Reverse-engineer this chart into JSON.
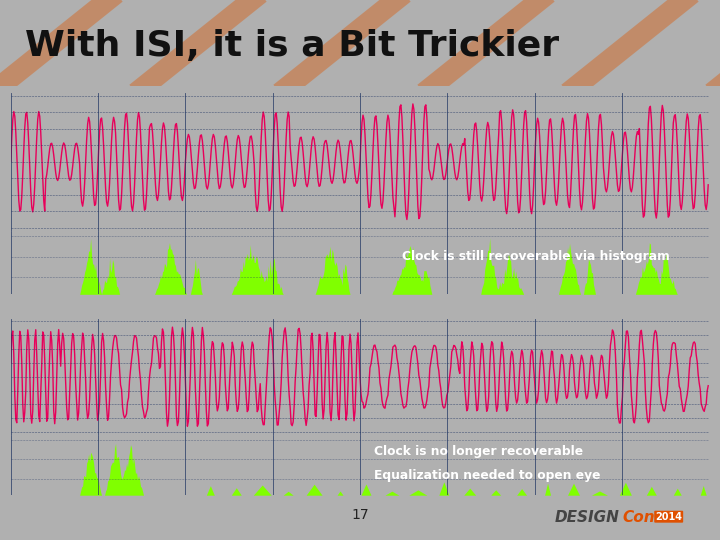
{
  "title": "With ISI, it is a Bit Trickier",
  "title_fontsize": 26,
  "title_color": "#111111",
  "panel_bg": "#050510",
  "signal_color": "#e8005a",
  "hist_color": "#80ff00",
  "text1": "Clock is still recoverable via histogram",
  "text2_line1": "Clock is no longer recoverable",
  "text2_line2": "Equalization needed to open eye",
  "annotation_color": "#ffffff",
  "annotation_fontsize": 9,
  "footer_text": "17",
  "footer_color": "#333333",
  "slide_bg": "#c8c8c8",
  "header_bg": "#f0f0ee",
  "header_orange_bg": "#cc4400",
  "grid_color": "#1a2a4a",
  "designcon_orange": "#e05000",
  "designcon_gray": "#888888"
}
